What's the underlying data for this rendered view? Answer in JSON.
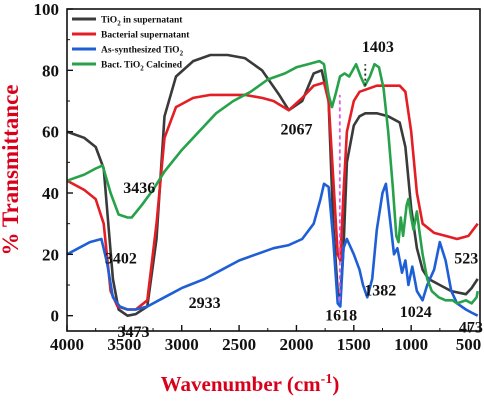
{
  "chart_data": {
    "type": "line",
    "title": "",
    "xlabel": "Wavenumber (cm",
    "xlabel_sup": "-1",
    "xlabel_close": ")",
    "ylabel": "% Transmittance",
    "xlim": [
      4000,
      400
    ],
    "x_reversed": true,
    "ylim": [
      -5,
      100
    ],
    "x_ticks": [
      "4000",
      "3500",
      "3000",
      "2500",
      "2000",
      "1500",
      "1000",
      "500"
    ],
    "y_ticks": [
      "0",
      "20",
      "40",
      "60",
      "80",
      "100"
    ],
    "grid": false,
    "legend_position": "top-left",
    "colors": {
      "xlabel": "#d8001a",
      "ylabel": "#d8001a"
    },
    "series": [
      {
        "name": "TiO2 in supernatant",
        "name_main": "TiO",
        "name_sub": "2",
        "name_rest": " in supernatant",
        "color": "#3a3a3a",
        "points": [
          [
            4000,
            60
          ],
          [
            3850,
            58
          ],
          [
            3750,
            55
          ],
          [
            3680,
            48
          ],
          [
            3600,
            12
          ],
          [
            3550,
            2
          ],
          [
            3473,
            0
          ],
          [
            3400,
            0.5
          ],
          [
            3300,
            3
          ],
          [
            3220,
            25
          ],
          [
            3150,
            65
          ],
          [
            3050,
            78
          ],
          [
            2900,
            83
          ],
          [
            2750,
            85
          ],
          [
            2600,
            85
          ],
          [
            2450,
            84
          ],
          [
            2300,
            80
          ],
          [
            2150,
            72
          ],
          [
            2067,
            67
          ],
          [
            1950,
            70
          ],
          [
            1850,
            79
          ],
          [
            1780,
            80
          ],
          [
            1720,
            70
          ],
          [
            1680,
            30
          ],
          [
            1640,
            8
          ],
          [
            1618,
            6
          ],
          [
            1590,
            22
          ],
          [
            1560,
            50
          ],
          [
            1500,
            62
          ],
          [
            1450,
            65
          ],
          [
            1400,
            66
          ],
          [
            1300,
            66
          ],
          [
            1200,
            65
          ],
          [
            1100,
            63
          ],
          [
            1050,
            55
          ],
          [
            1000,
            35
          ],
          [
            950,
            22
          ],
          [
            900,
            15
          ],
          [
            850,
            12
          ],
          [
            750,
            10
          ],
          [
            650,
            8
          ],
          [
            523,
            7
          ],
          [
            473,
            9
          ],
          [
            420,
            12
          ]
        ]
      },
      {
        "name": "Bacterial supernatant",
        "name_main": "Bacterial supernatant",
        "name_sub": "",
        "name_rest": "",
        "color": "#e31e24",
        "points": [
          [
            4000,
            44
          ],
          [
            3850,
            41
          ],
          [
            3750,
            38
          ],
          [
            3680,
            30
          ],
          [
            3620,
            8
          ],
          [
            3560,
            3
          ],
          [
            3473,
            2
          ],
          [
            3400,
            2
          ],
          [
            3300,
            5
          ],
          [
            3220,
            30
          ],
          [
            3150,
            58
          ],
          [
            3050,
            68
          ],
          [
            2900,
            71
          ],
          [
            2750,
            72
          ],
          [
            2600,
            72
          ],
          [
            2450,
            72
          ],
          [
            2300,
            71
          ],
          [
            2200,
            70
          ],
          [
            2067,
            67
          ],
          [
            1950,
            71
          ],
          [
            1850,
            75
          ],
          [
            1760,
            76
          ],
          [
            1720,
            70
          ],
          [
            1680,
            45
          ],
          [
            1640,
            20
          ],
          [
            1618,
            18
          ],
          [
            1590,
            40
          ],
          [
            1560,
            60
          ],
          [
            1500,
            70
          ],
          [
            1450,
            73
          ],
          [
            1300,
            75
          ],
          [
            1100,
            75
          ],
          [
            1050,
            73
          ],
          [
            1000,
            60
          ],
          [
            950,
            40
          ],
          [
            900,
            30
          ],
          [
            800,
            27
          ],
          [
            700,
            26
          ],
          [
            600,
            25
          ],
          [
            500,
            26
          ],
          [
            420,
            30
          ]
        ]
      },
      {
        "name": "As-synthesized TiO2",
        "name_main": "As-synthesized TiO",
        "name_sub": "2",
        "name_rest": "",
        "color": "#1f5fd6",
        "points": [
          [
            4000,
            20
          ],
          [
            3900,
            22
          ],
          [
            3800,
            24
          ],
          [
            3700,
            25
          ],
          [
            3650,
            17
          ],
          [
            3600,
            6
          ],
          [
            3540,
            3
          ],
          [
            3473,
            2
          ],
          [
            3400,
            2
          ],
          [
            3300,
            3
          ],
          [
            3200,
            5
          ],
          [
            3100,
            7
          ],
          [
            3000,
            9
          ],
          [
            2933,
            10
          ],
          [
            2800,
            12
          ],
          [
            2650,
            15
          ],
          [
            2500,
            18
          ],
          [
            2350,
            20
          ],
          [
            2200,
            22
          ],
          [
            2067,
            23
          ],
          [
            1950,
            25
          ],
          [
            1850,
            30
          ],
          [
            1790,
            38
          ],
          [
            1760,
            43
          ],
          [
            1720,
            42
          ],
          [
            1680,
            25
          ],
          [
            1640,
            4
          ],
          [
            1618,
            3
          ],
          [
            1590,
            22
          ],
          [
            1560,
            25
          ],
          [
            1500,
            20
          ],
          [
            1450,
            15
          ],
          [
            1420,
            10
          ],
          [
            1382,
            6
          ],
          [
            1340,
            12
          ],
          [
            1300,
            28
          ],
          [
            1250,
            40
          ],
          [
            1220,
            43
          ],
          [
            1180,
            30
          ],
          [
            1150,
            20
          ],
          [
            1120,
            22
          ],
          [
            1080,
            14
          ],
          [
            1050,
            18
          ],
          [
            1024,
            10
          ],
          [
            990,
            16
          ],
          [
            950,
            8
          ],
          [
            900,
            5
          ],
          [
            860,
            10
          ],
          [
            800,
            15
          ],
          [
            750,
            24
          ],
          [
            700,
            18
          ],
          [
            650,
            8
          ],
          [
            600,
            4
          ],
          [
            523,
            2
          ],
          [
            473,
            1
          ],
          [
            420,
            0
          ]
        ]
      },
      {
        "name": "Bact. TiO2 Calcined",
        "name_main": "Bact. TiO",
        "name_sub": "2",
        "name_rest": " Calcined",
        "color": "#27a24a",
        "points": [
          [
            4000,
            44
          ],
          [
            3850,
            46
          ],
          [
            3750,
            48
          ],
          [
            3690,
            49
          ],
          [
            3620,
            40
          ],
          [
            3550,
            33
          ],
          [
            3473,
            32
          ],
          [
            3436,
            32
          ],
          [
            3350,
            36
          ],
          [
            3250,
            41
          ],
          [
            3150,
            47
          ],
          [
            3000,
            54
          ],
          [
            2850,
            60
          ],
          [
            2700,
            66
          ],
          [
            2550,
            70
          ],
          [
            2400,
            73
          ],
          [
            2250,
            77
          ],
          [
            2100,
            79
          ],
          [
            2000,
            81
          ],
          [
            1900,
            82
          ],
          [
            1800,
            83
          ],
          [
            1760,
            82
          ],
          [
            1720,
            72
          ],
          [
            1690,
            68
          ],
          [
            1660,
            72
          ],
          [
            1620,
            78
          ],
          [
            1580,
            79
          ],
          [
            1540,
            78
          ],
          [
            1480,
            82
          ],
          [
            1440,
            78
          ],
          [
            1403,
            75
          ],
          [
            1360,
            78
          ],
          [
            1320,
            82
          ],
          [
            1280,
            81
          ],
          [
            1240,
            74
          ],
          [
            1200,
            60
          ],
          [
            1160,
            42
          ],
          [
            1130,
            26
          ],
          [
            1110,
            24
          ],
          [
            1090,
            32
          ],
          [
            1070,
            26
          ],
          [
            1040,
            36
          ],
          [
            1024,
            38
          ],
          [
            1000,
            32
          ],
          [
            980,
            28
          ],
          [
            950,
            34
          ],
          [
            930,
            28
          ],
          [
            900,
            20
          ],
          [
            860,
            12
          ],
          [
            820,
            8
          ],
          [
            760,
            6
          ],
          [
            700,
            5
          ],
          [
            640,
            5
          ],
          [
            600,
            4
          ],
          [
            523,
            5
          ],
          [
            473,
            4
          ],
          [
            430,
            6
          ],
          [
            420,
            8
          ]
        ]
      }
    ],
    "peak_labels": [
      {
        "text": "3436",
        "x": 3370,
        "y": 40
      },
      {
        "text": "3402",
        "x": 3530,
        "y": 17
      },
      {
        "text": "3473",
        "x": 3420,
        "y": -7
      },
      {
        "text": "2933",
        "x": 2800,
        "y": 2.5
      },
      {
        "text": "2067",
        "x": 2000,
        "y": 59
      },
      {
        "text": "1403",
        "x": 1290,
        "y": 86
      },
      {
        "text": "1618",
        "x": 1610,
        "y": -1.5
      },
      {
        "text": "1382",
        "x": 1270,
        "y": 6.5
      },
      {
        "text": "1024",
        "x": 960,
        "y": -0.5
      },
      {
        "text": "523",
        "x": 520,
        "y": 17
      },
      {
        "text": "473",
        "x": 480,
        "y": -5.5
      }
    ],
    "guides": [
      {
        "name": "dashed-1618",
        "color": "#e754e6",
        "x": 1622,
        "y1": 5,
        "y2": 72
      },
      {
        "name": "dotted-1403",
        "color": "#222222",
        "x": 1400,
        "y1": 75,
        "y2": 82
      }
    ]
  }
}
